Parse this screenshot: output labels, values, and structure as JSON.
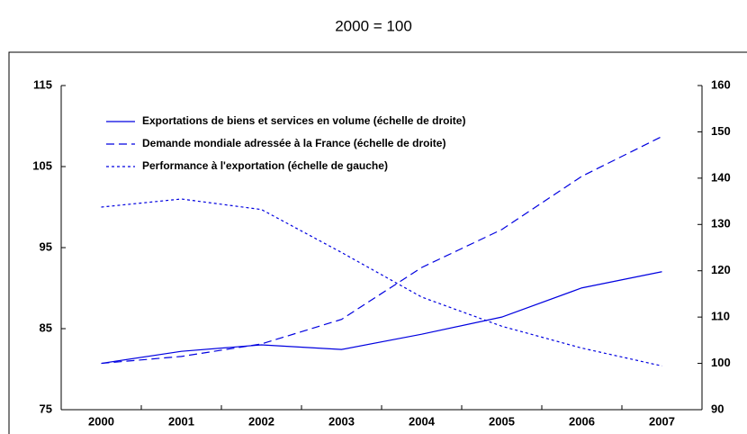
{
  "chart_data": {
    "type": "line",
    "title": "2000 = 100",
    "categories": [
      "2000",
      "2001",
      "2002",
      "2003",
      "2004",
      "2005",
      "2006",
      "2007"
    ],
    "series": [
      {
        "name": "Exportations de biens et services en volume (échelle de droite)",
        "color": "#0000e0",
        "style": "solid",
        "axis": "y2",
        "values": [
          100,
          102.6,
          104,
          103,
          106.3,
          110,
          116.3,
          119.8
        ]
      },
      {
        "name": "Demande mondiale adressée à la France (échelle de droite)",
        "color": "#0000e0",
        "style": "dashed",
        "axis": "y2",
        "values": [
          100,
          101.5,
          104.2,
          109.5,
          120.7,
          128.9,
          140.4,
          149
        ]
      },
      {
        "name": "Performance à l'exportation (échelle de gauche)",
        "color": "#0000e0",
        "style": "dotted",
        "values": [
          100,
          101,
          99.7,
          94.4,
          88.9,
          85.3,
          82.6,
          80.4
        ]
      }
    ],
    "ylim": [
      75,
      115
    ],
    "yticks": [
      75,
      85,
      95,
      105,
      115
    ],
    "y2lim": [
      90,
      160
    ],
    "y2ticks": [
      90,
      100,
      110,
      120,
      130,
      140,
      150,
      160
    ]
  }
}
